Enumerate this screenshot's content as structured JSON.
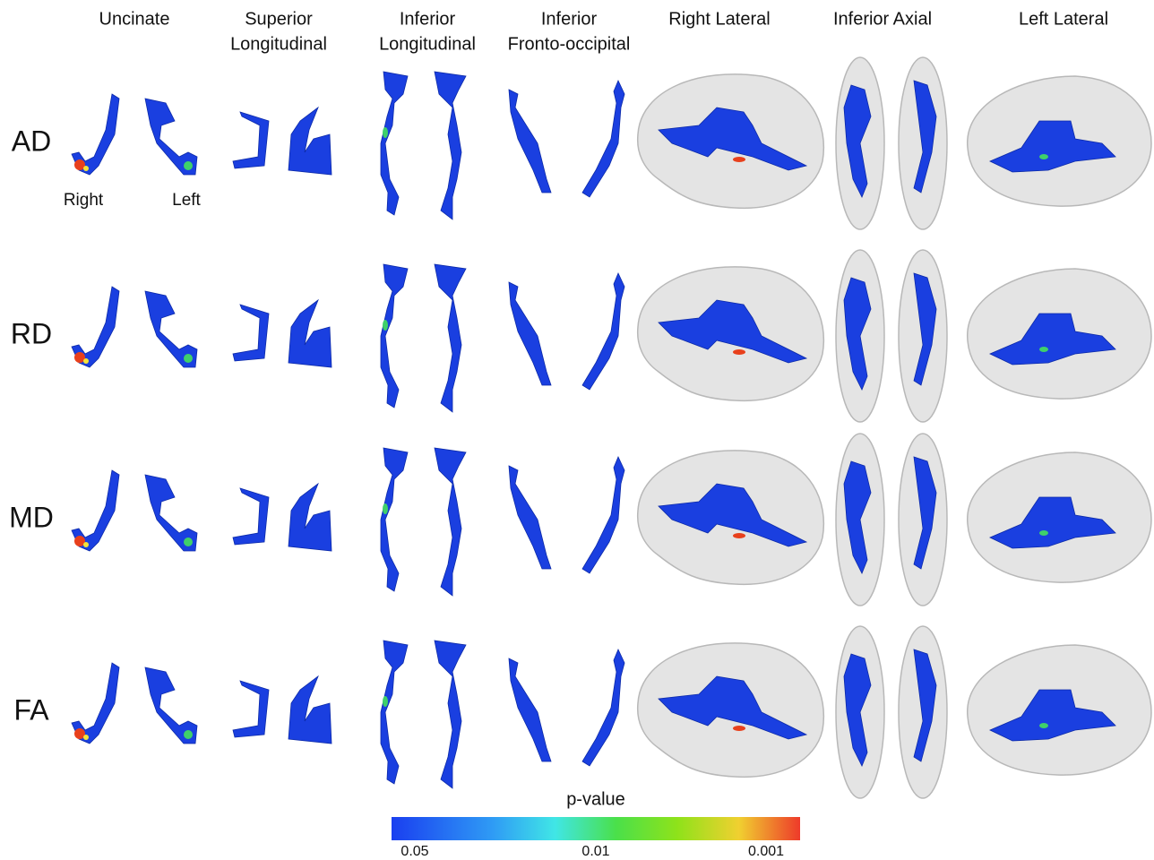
{
  "columns": [
    [
      "Uncinate"
    ],
    [
      "Superior",
      "Longitudinal"
    ],
    [
      "Inferior",
      "Longitudinal"
    ],
    [
      "Inferior",
      "Fronto-occipital"
    ],
    [
      "Right Lateral"
    ],
    [
      "Inferior Axial"
    ],
    [
      "Left Lateral"
    ]
  ],
  "rows": [
    "AD",
    "RD",
    "MD",
    "FA"
  ],
  "side_labels": [
    "Right",
    "Left"
  ],
  "colorbar": {
    "title": "p-value",
    "labels": [
      "0.05",
      "0.01",
      "0.001"
    ]
  }
}
